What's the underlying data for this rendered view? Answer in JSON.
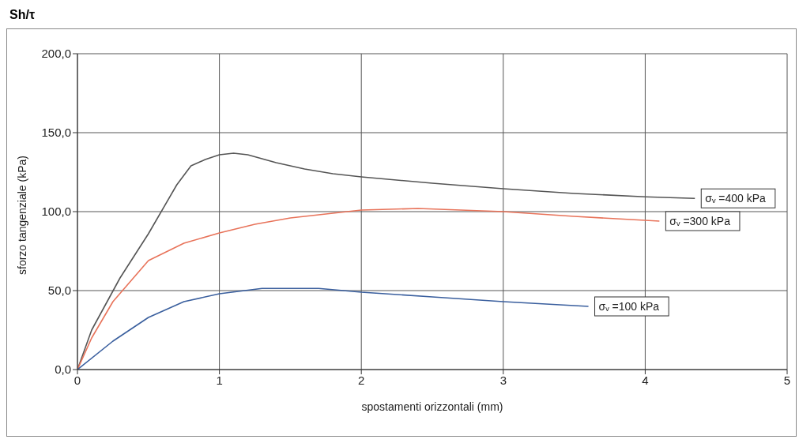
{
  "chart_data": {
    "type": "line",
    "title": "Sh/τ",
    "xlabel": "spostamenti orizzontali (mm)",
    "ylabel": "sforzo tangenziale (kPa)",
    "xlim": [
      0,
      5
    ],
    "xticks": [
      0,
      1,
      2,
      3,
      4,
      5
    ],
    "ylim": [
      0,
      200
    ],
    "yticks": [
      {
        "value": 0,
        "label": "0,0"
      },
      {
        "value": 50,
        "label": "50,0"
      },
      {
        "value": 100,
        "label": "100,0"
      },
      {
        "value": 150,
        "label": "150,0"
      },
      {
        "value": 200,
        "label": "200,0"
      }
    ],
    "grid": true,
    "legend": false,
    "marker": "none",
    "line_style": "solid",
    "series": [
      {
        "name": "σᵥ =400 kPa",
        "color": "#555555",
        "x": [
          0,
          0.1,
          0.3,
          0.5,
          0.7,
          0.8,
          0.9,
          1.0,
          1.1,
          1.2,
          1.4,
          1.6,
          1.8,
          2.0,
          2.5,
          3.0,
          3.5,
          4.0,
          4.35
        ],
        "values": [
          0,
          25,
          58,
          86,
          117,
          129,
          133,
          136,
          137,
          136,
          131,
          127,
          124,
          122,
          118,
          114.5,
          111.5,
          109.4,
          108.4
        ]
      },
      {
        "name": "σᵥ =300 kPa",
        "color": "#e8735a",
        "x": [
          0,
          0.1,
          0.25,
          0.5,
          0.75,
          1.0,
          1.25,
          1.5,
          2.0,
          2.4,
          3.0,
          3.5,
          4.1
        ],
        "values": [
          0,
          20,
          43,
          69,
          80,
          86.5,
          92,
          96,
          101,
          102,
          100,
          97,
          94
        ]
      },
      {
        "name": "σᵥ =100 kPa",
        "color": "#3a5f9e",
        "x": [
          0,
          0.25,
          0.5,
          0.75,
          1.0,
          1.3,
          1.7,
          2.0,
          2.5,
          3.0,
          3.6
        ],
        "values": [
          0,
          18,
          33,
          43,
          48,
          51.4,
          51.4,
          49,
          46,
          43,
          40
        ]
      }
    ]
  }
}
